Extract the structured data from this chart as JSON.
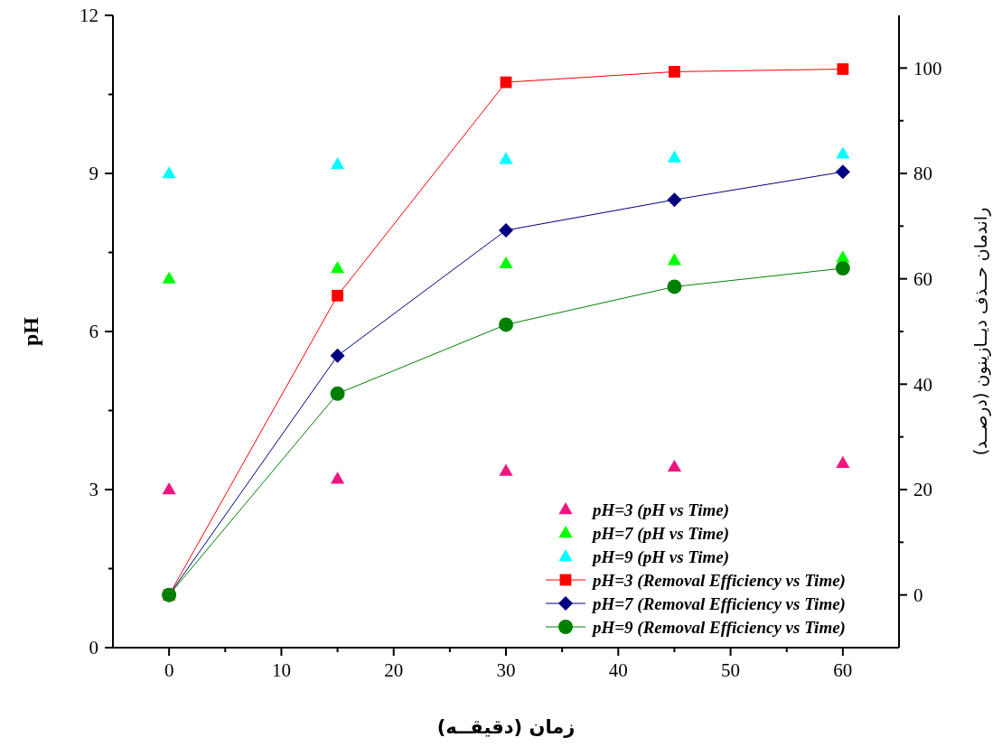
{
  "chart_data": {
    "type": "scatter",
    "xlabel": "زمان (دقیقــه)",
    "ylabel": "pH",
    "y2label": "راندمان حــذف دیــازینون (درصــد)",
    "x": [
      0,
      15,
      30,
      45,
      60
    ],
    "xlim": [
      -5,
      65
    ],
    "xticks": [
      0,
      {
        "value": 5,
        "label": null
      },
      10,
      {
        "value": 15,
        "label": null
      },
      20,
      {
        "value": 25,
        "label": null
      },
      30,
      {
        "value": 35,
        "label": null
      },
      40,
      {
        "value": 45,
        "label": null
      },
      50,
      {
        "value": 55,
        "label": null
      },
      60
    ],
    "ylim": [
      0,
      12
    ],
    "yticks": [
      0,
      {
        "value": 1.5,
        "label": null
      },
      3,
      {
        "value": 4.5,
        "label": null
      },
      6,
      {
        "value": 7.5,
        "label": null
      },
      9,
      {
        "value": 10.5,
        "label": null
      },
      12
    ],
    "y2lim": [
      -10,
      110
    ],
    "y2ticks": [
      0,
      {
        "value": 10,
        "label": null
      },
      20,
      {
        "value": 30,
        "label": null
      },
      40,
      {
        "value": 50,
        "label": null
      },
      60,
      {
        "value": 70,
        "label": null
      },
      80,
      {
        "value": 90,
        "label": null
      },
      100
    ],
    "legend": "bottom right",
    "grid": false,
    "series": [
      {
        "name": "pH=3 (pH vs Time)",
        "marker": "triangle",
        "color": "#f0147f",
        "values": [
          3.0,
          3.2,
          3.35,
          3.43,
          3.5
        ]
      },
      {
        "name": "pH=7 (pH vs Time)",
        "marker": "triangle",
        "color": "#00ff00",
        "values": [
          7.0,
          7.2,
          7.29,
          7.35,
          7.4
        ]
      },
      {
        "name": "pH=9 (pH vs Time)",
        "marker": "triangle",
        "color": "#00ffff",
        "values": [
          9.0,
          9.17,
          9.27,
          9.3,
          9.37
        ]
      },
      {
        "name": "pH=3 (Removal Efficiency vs Time)",
        "type": "line",
        "axis": "y2",
        "marker": "square",
        "color": "#ff0000",
        "values": [
          0,
          56.8,
          97.3,
          99.3,
          99.8
        ]
      },
      {
        "name": "pH=7 (Removal Efficiency vs Time)",
        "type": "line",
        "axis": "y2",
        "marker": "diamond",
        "color": "#000080",
        "values": [
          0,
          45.4,
          69.2,
          75,
          80.3
        ]
      },
      {
        "name": "pH=9 (Removal Efficiency vs Time)",
        "type": "line",
        "axis": "y2",
        "marker": "circle",
        "color": "#008000",
        "values": [
          0,
          38.2,
          51.3,
          58.5,
          62
        ]
      }
    ]
  }
}
